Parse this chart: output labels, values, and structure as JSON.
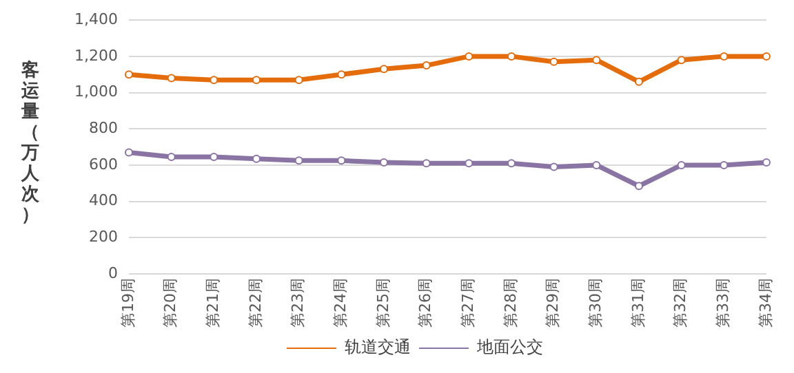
{
  "chart_data": {
    "type": "line",
    "ylabel": "客运量（万人次）",
    "categories": [
      "第19周",
      "第20周",
      "第21周",
      "第22周",
      "第23周",
      "第24周",
      "第25周",
      "第26周",
      "第27周",
      "第28周",
      "第29周",
      "第30周",
      "第31周",
      "第32周",
      "第33周",
      "第34周"
    ],
    "series": [
      {
        "name": "轨道交通",
        "color": "#e46c0a",
        "values": [
          1100,
          1080,
          1070,
          1070,
          1070,
          1100,
          1130,
          1150,
          1200,
          1200,
          1170,
          1180,
          1060,
          1180,
          1200,
          1200
        ]
      },
      {
        "name": "地面公交",
        "color": "#8a74a4",
        "values": [
          670,
          645,
          645,
          635,
          625,
          625,
          615,
          610,
          610,
          610,
          590,
          600,
          485,
          600,
          600,
          615
        ]
      }
    ],
    "ylim": [
      0,
      1400
    ],
    "yticks": [
      0,
      200,
      400,
      600,
      800,
      {
        "value": 1000,
        "label": "1,000"
      },
      {
        "value": 1200,
        "label": "1,200"
      },
      {
        "value": 1400,
        "label": "1,400"
      }
    ],
    "grid": "y",
    "legend": "bottom",
    "marker": "circle",
    "line_style": "solid"
  }
}
